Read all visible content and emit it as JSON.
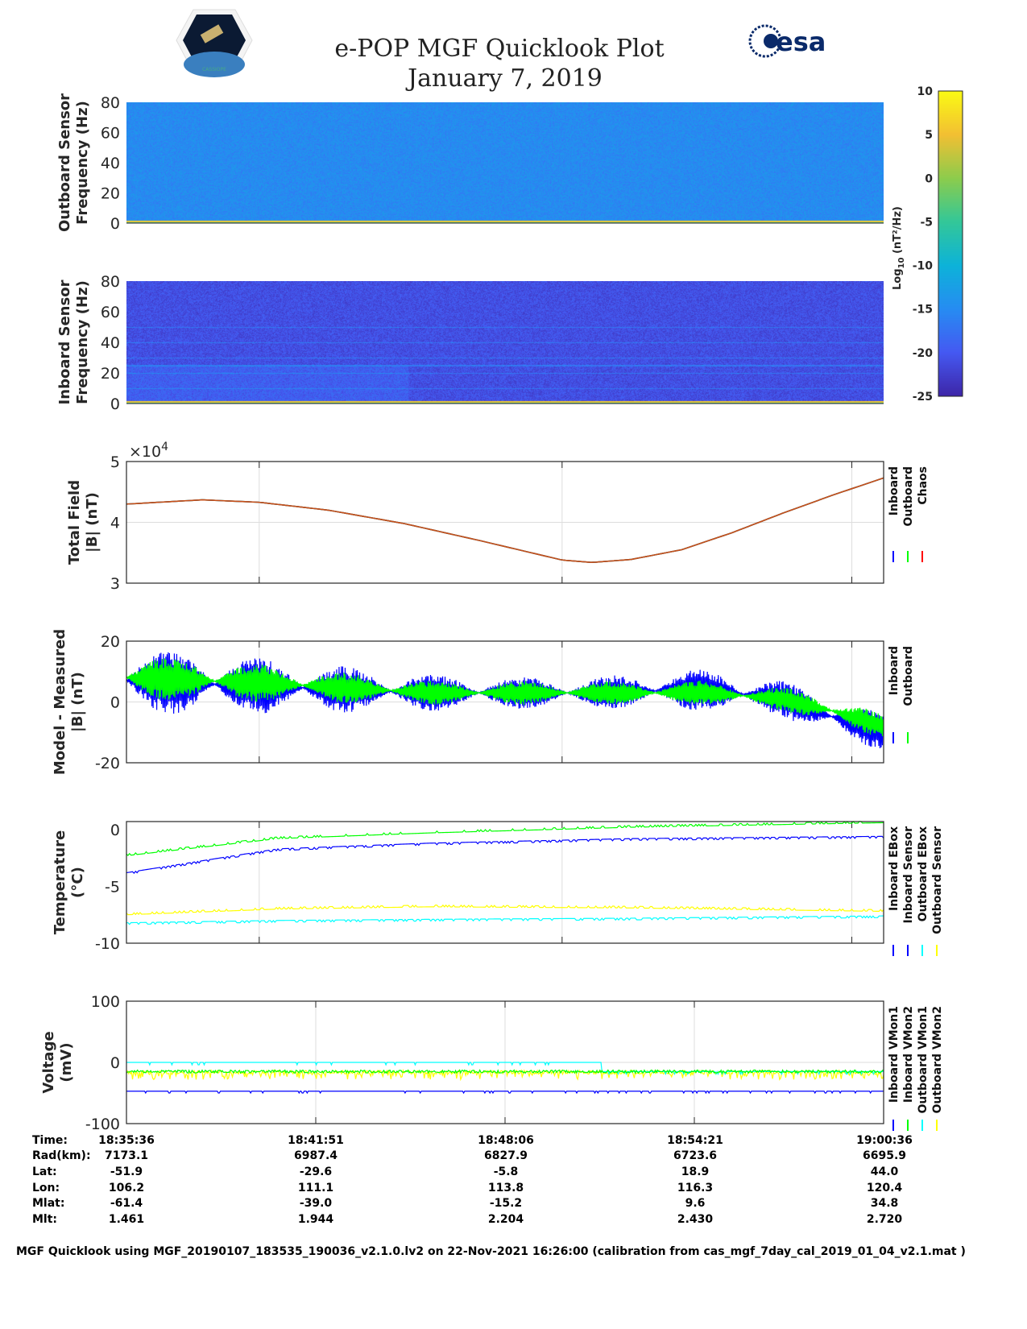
{
  "header": {
    "title": "e-POP MGF Quicklook Plot",
    "date": "January 7, 2019",
    "logo_left": "CASSIOPE",
    "logo_right": "esa"
  },
  "colors": {
    "inboard": "#0000ff",
    "outboard": "#00ff00",
    "chaos": "#ff0000",
    "ebox_out": "#ffff00",
    "sensor_out": "#00ffff"
  },
  "colorbar": {
    "label": "Log10 (nT²/Hz)",
    "label_main": "Log",
    "label_sub": "10",
    "label_rest": " (nT²/Hz)",
    "ticks": [
      "10",
      "5",
      "0",
      "-5",
      "-10",
      "-15",
      "-20",
      "-25"
    ],
    "range": [
      -25,
      10
    ]
  },
  "chart_data": [
    {
      "type": "heatmap",
      "name": "outboard-spectrogram",
      "ylabel": [
        "Outboard Sensor",
        "Frequency (Hz)"
      ],
      "ylim": [
        0,
        80
      ],
      "yticks": [
        "80",
        "60",
        "40",
        "20",
        "0"
      ],
      "background_level": -15,
      "low_freq_level": 2
    },
    {
      "type": "heatmap",
      "name": "inboard-spectrogram",
      "ylabel": [
        "Inboard Sensor",
        "Frequency (Hz)"
      ],
      "ylim": [
        0,
        80
      ],
      "yticks": [
        "80",
        "60",
        "40",
        "20",
        "0"
      ],
      "background_level": -21,
      "low_freq_level": 2,
      "lines_hz": [
        50,
        40,
        30,
        25,
        20,
        10
      ]
    },
    {
      "type": "line",
      "name": "total-field",
      "ylabel": [
        "Total Field",
        "|B| (nT)"
      ],
      "ylim": [
        30000,
        50000
      ],
      "yticks": [
        "5",
        "4",
        "3"
      ],
      "exponent": "×10",
      "exponent_power": "4",
      "legend": [
        "Inboard",
        "Outboard",
        "Chaos"
      ],
      "t": [
        0,
        150,
        263,
        400,
        550,
        700,
        863,
        922,
        1000,
        1100,
        1200,
        1300,
        1400,
        1500
      ],
      "values": [
        43000,
        43700,
        43300,
        42000,
        39800,
        37000,
        33800,
        33400,
        33900,
        35500,
        38300,
        41500,
        44500,
        47300
      ]
    },
    {
      "type": "line",
      "name": "model-minus-measured",
      "ylabel": [
        "Model - Measured",
        "|B| (nT)"
      ],
      "ylim": [
        -20,
        20
      ],
      "yticks": [
        "20",
        "0",
        "-20"
      ],
      "legend": [
        "Inboard",
        "Outboard"
      ],
      "t": [
        0,
        300,
        600,
        900,
        1150,
        1300,
        1400,
        1500
      ],
      "series": [
        {
          "name": "Inboard",
          "mean": [
            7,
            5,
            3,
            3,
            4,
            1,
            -5,
            -10
          ],
          "amp": [
            11,
            9,
            6,
            5,
            7,
            6,
            7,
            6
          ]
        },
        {
          "name": "Outboard",
          "mean": [
            8,
            6,
            3,
            3,
            3,
            1,
            -3,
            -8
          ],
          "amp": [
            8,
            6,
            4,
            4,
            4,
            4,
            5,
            4
          ]
        }
      ]
    },
    {
      "type": "line",
      "name": "temperature",
      "ylabel": [
        "Temperature",
        "(°C)"
      ],
      "ylim": [
        -10,
        0.7
      ],
      "yticks": [
        "0",
        "-5",
        "-10"
      ],
      "legend": [
        "Inboard EBox",
        "Inboard Sensor",
        "Outboard EBox",
        "Outboard Sensor"
      ],
      "t": [
        0,
        300,
        600,
        1000,
        1500
      ],
      "series": [
        {
          "name": "Inboard EBox",
          "values": [
            -2.3,
            -0.8,
            -0.3,
            0.2,
            0.6
          ]
        },
        {
          "name": "Inboard Sensor",
          "values": [
            -3.8,
            -1.7,
            -1.2,
            -0.8,
            -0.6
          ]
        },
        {
          "name": "Outboard EBox",
          "values": [
            -7.5,
            -7.0,
            -6.8,
            -6.9,
            -7.2
          ]
        },
        {
          "name": "Outboard Sensor",
          "values": [
            -8.2,
            -8.0,
            -7.9,
            -7.8,
            -7.6
          ]
        }
      ]
    },
    {
      "type": "line",
      "name": "voltage",
      "ylabel": [
        "Voltage",
        "(mV)"
      ],
      "ylim": [
        -100,
        100
      ],
      "yticks": [
        "100",
        "0",
        "-100"
      ],
      "legend": [
        "Inboard VMon1",
        "Inboard VMon2",
        "Outboard VMon1",
        "Outboard VMon2"
      ],
      "series": [
        {
          "name": "Inboard VMon1",
          "level": -47
        },
        {
          "name": "Inboard VMon2",
          "level": -15
        },
        {
          "name": "Outboard VMon1",
          "level": 0,
          "level_after": -15,
          "switch_t": 940
        },
        {
          "name": "Outboard VMon2",
          "level": -16
        }
      ]
    }
  ],
  "x_range_seconds": [
    0,
    1500
  ],
  "table": {
    "labels": [
      "Time:",
      "Rad(km):",
      "Lat:",
      "Lon:",
      "Mlat:",
      "Mlt:"
    ],
    "columns": [
      [
        "18:35:36",
        "7173.1",
        "-51.9",
        "106.2",
        "-61.4",
        "1.461"
      ],
      [
        "18:41:51",
        "6987.4",
        "-29.6",
        "111.1",
        "-39.0",
        "1.944"
      ],
      [
        "18:48:06",
        "6827.9",
        "-5.8",
        "113.8",
        "-15.2",
        "2.204"
      ],
      [
        "18:54:21",
        "6723.6",
        "18.9",
        "116.3",
        "9.6",
        "2.430"
      ],
      [
        "19:00:36",
        "6695.9",
        "44.0",
        "120.4",
        "34.8",
        "2.720"
      ]
    ]
  },
  "footer": "MGF Quicklook using MGF_20190107_183535_190036_v2.1.0.lv2 on 22-Nov-2021 16:26:00 (calibration from cas_mgf_7day_cal_2019_01_04_v2.1.mat )"
}
